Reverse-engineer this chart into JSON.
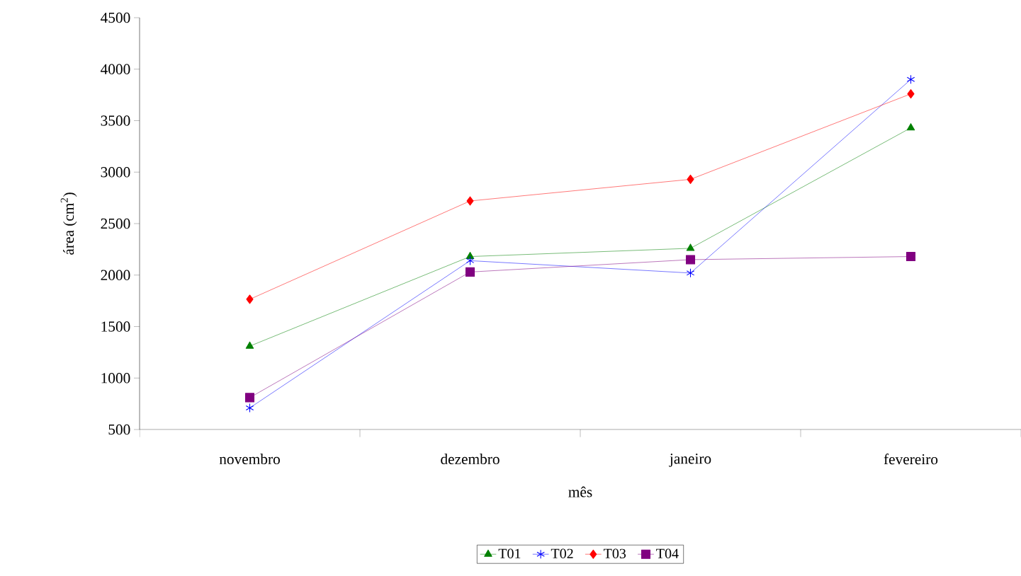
{
  "chart_data": {
    "type": "line",
    "xlabel": "mês",
    "ylabel": "área (cm$^{2}$)",
    "categories": [
      "novembro",
      "dezembro",
      "janeiro",
      "fevereiro"
    ],
    "ylim": [
      500,
      4500
    ],
    "yticks": [
      500,
      1000,
      1500,
      2000,
      2500,
      3000,
      3500,
      4000,
      4500
    ],
    "legend": "bottom",
    "grid": false,
    "line_style": "solid",
    "series": [
      {
        "name": "T01",
        "color": "#008000",
        "marker": "triangle",
        "values": [
          1310,
          2180,
          2260,
          3430
        ]
      },
      {
        "name": "T02",
        "color": "#0000ff",
        "marker": "cross",
        "values": [
          710,
          2140,
          2020,
          3900
        ]
      },
      {
        "name": "T03",
        "color": "#ff0000",
        "marker": "diamond",
        "values": [
          1765,
          2720,
          2930,
          3760
        ]
      },
      {
        "name": "T04",
        "color": "#800080",
        "marker": "square",
        "values": [
          810,
          2030,
          2150,
          2180
        ]
      }
    ]
  }
}
